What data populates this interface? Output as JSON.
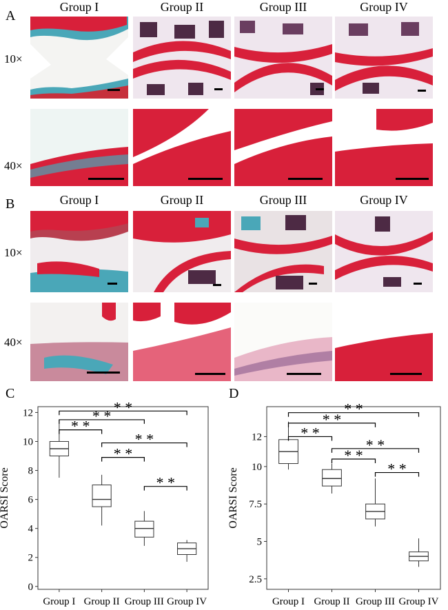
{
  "panel_a": {
    "letter": "A",
    "groups": [
      "Group I",
      "Group II",
      "Group III",
      "Group IV"
    ],
    "row_labels": [
      "10×",
      "40×"
    ]
  },
  "panel_b": {
    "letter": "B",
    "groups": [
      "Group I",
      "Group II",
      "Group III",
      "Group IV"
    ],
    "row_labels": [
      "10×",
      "40×"
    ]
  },
  "colors": {
    "cartilage_red": "#d8203a",
    "stain_blue": "#4aa7b8",
    "marrow_purple": "#4d2a44",
    "tissue_pink": "#e9b7c8"
  },
  "chart_data": [
    {
      "panel": "C",
      "type": "box",
      "ylabel": "OARSI Score",
      "categories": [
        "Group I",
        "Group II",
        "Group III",
        "Group IV"
      ],
      "yticks": [
        "0",
        "2",
        "4",
        "6",
        "8",
        "10",
        "12"
      ],
      "ylim": [
        -0.2,
        12.4
      ],
      "boxes": [
        {
          "min": 7.5,
          "q1": 9.0,
          "median": 9.5,
          "q3": 10.0,
          "max": 11.5
        },
        {
          "min": 4.2,
          "q1": 5.5,
          "median": 6.0,
          "q3": 7.0,
          "max": 7.7
        },
        {
          "min": 2.8,
          "q1": 3.4,
          "median": 4.0,
          "q3": 4.5,
          "max": 5.2
        },
        {
          "min": 1.7,
          "q1": 2.2,
          "median": 2.6,
          "q3": 3.0,
          "max": 3.2
        }
      ],
      "significance": [
        {
          "from": 0,
          "to": 1,
          "label": "* *",
          "y": 10.8
        },
        {
          "from": 0,
          "to": 2,
          "label": "* *",
          "y": 11.5
        },
        {
          "from": 0,
          "to": 3,
          "label": "* *",
          "y": 12.1
        },
        {
          "from": 1,
          "to": 2,
          "label": "* *",
          "y": 8.9
        },
        {
          "from": 1,
          "to": 3,
          "label": "* *",
          "y": 9.9
        },
        {
          "from": 2,
          "to": 3,
          "label": "* *",
          "y": 6.9
        }
      ]
    },
    {
      "panel": "D",
      "type": "box",
      "ylabel": "OARSI Score",
      "categories": [
        "Group I",
        "Group II",
        "Group III",
        "Group IV"
      ],
      "yticks": [
        "2.5",
        "5",
        "7.5",
        "10",
        "12"
      ],
      "ylim": [
        1.8,
        14.0
      ],
      "boxes": [
        {
          "min": 9.8,
          "q1": 10.2,
          "median": 11.0,
          "q3": 11.8,
          "max": 13.0
        },
        {
          "min": 8.2,
          "q1": 8.7,
          "median": 9.2,
          "q3": 9.8,
          "max": 10.2
        },
        {
          "min": 6.0,
          "q1": 6.5,
          "median": 7.0,
          "q3": 7.5,
          "max": 9.2
        },
        {
          "min": 3.3,
          "q1": 3.7,
          "median": 4.0,
          "q3": 4.3,
          "max": 5.2
        }
      ],
      "significance": [
        {
          "from": 0,
          "to": 1,
          "label": "* *",
          "y": 12.0
        },
        {
          "from": 0,
          "to": 2,
          "label": "* *",
          "y": 12.9
        },
        {
          "from": 0,
          "to": 3,
          "label": "* *",
          "y": 13.6
        },
        {
          "from": 1,
          "to": 2,
          "label": "* *",
          "y": 10.5
        },
        {
          "from": 1,
          "to": 3,
          "label": "* *",
          "y": 11.2
        },
        {
          "from": 2,
          "to": 3,
          "label": "* *",
          "y": 9.6
        }
      ]
    }
  ]
}
